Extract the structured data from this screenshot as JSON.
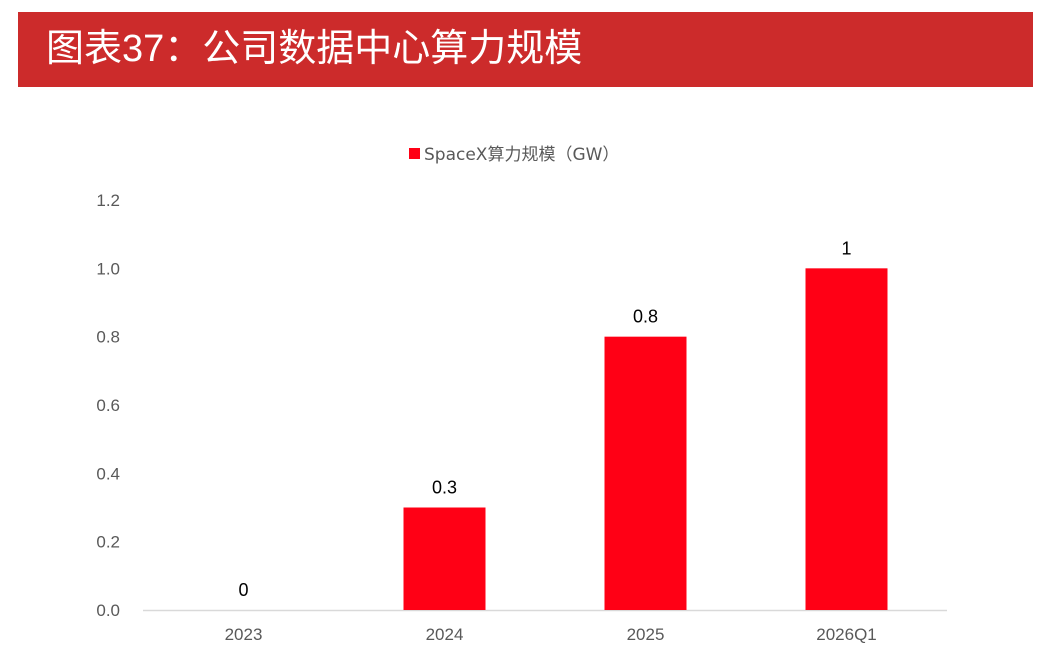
{
  "header": {
    "title": "图表37：公司数据中心算力规模"
  },
  "chart_data": {
    "type": "bar",
    "categories": [
      "2023",
      "2024",
      "2025",
      "2026Q1"
    ],
    "series": [
      {
        "name": "SpaceX算力规模（GW）",
        "values": [
          0,
          0.3,
          0.8,
          1
        ],
        "color": "#ff0015"
      }
    ],
    "data_labels": [
      "0",
      "0.3",
      "0.8",
      "1"
    ],
    "y_ticks": [
      "0.0",
      "0.2",
      "0.4",
      "0.6",
      "0.8",
      "1.0",
      "1.2"
    ],
    "ylim": [
      0,
      1.2
    ],
    "grid": false,
    "legend": "top-center"
  }
}
